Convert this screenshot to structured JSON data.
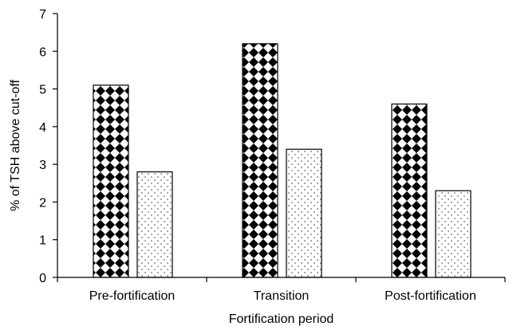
{
  "chart_data": {
    "type": "bar",
    "categories": [
      "Pre-fortification",
      "Transition",
      "Post-fortification"
    ],
    "series": [
      {
        "pattern": "checkerboard-diamond",
        "values": [
          5.1,
          6.2,
          4.6
        ]
      },
      {
        "pattern": "dotted",
        "values": [
          2.8,
          3.4,
          2.3
        ]
      }
    ],
    "xlabel": "Fortification period",
    "ylabel": "% of TSH above cut-off",
    "ylim": [
      0,
      7
    ],
    "yticks": [
      "0",
      "1",
      "2",
      "3",
      "4",
      "5",
      "6",
      "7"
    ],
    "grid": false,
    "legend": "none"
  }
}
